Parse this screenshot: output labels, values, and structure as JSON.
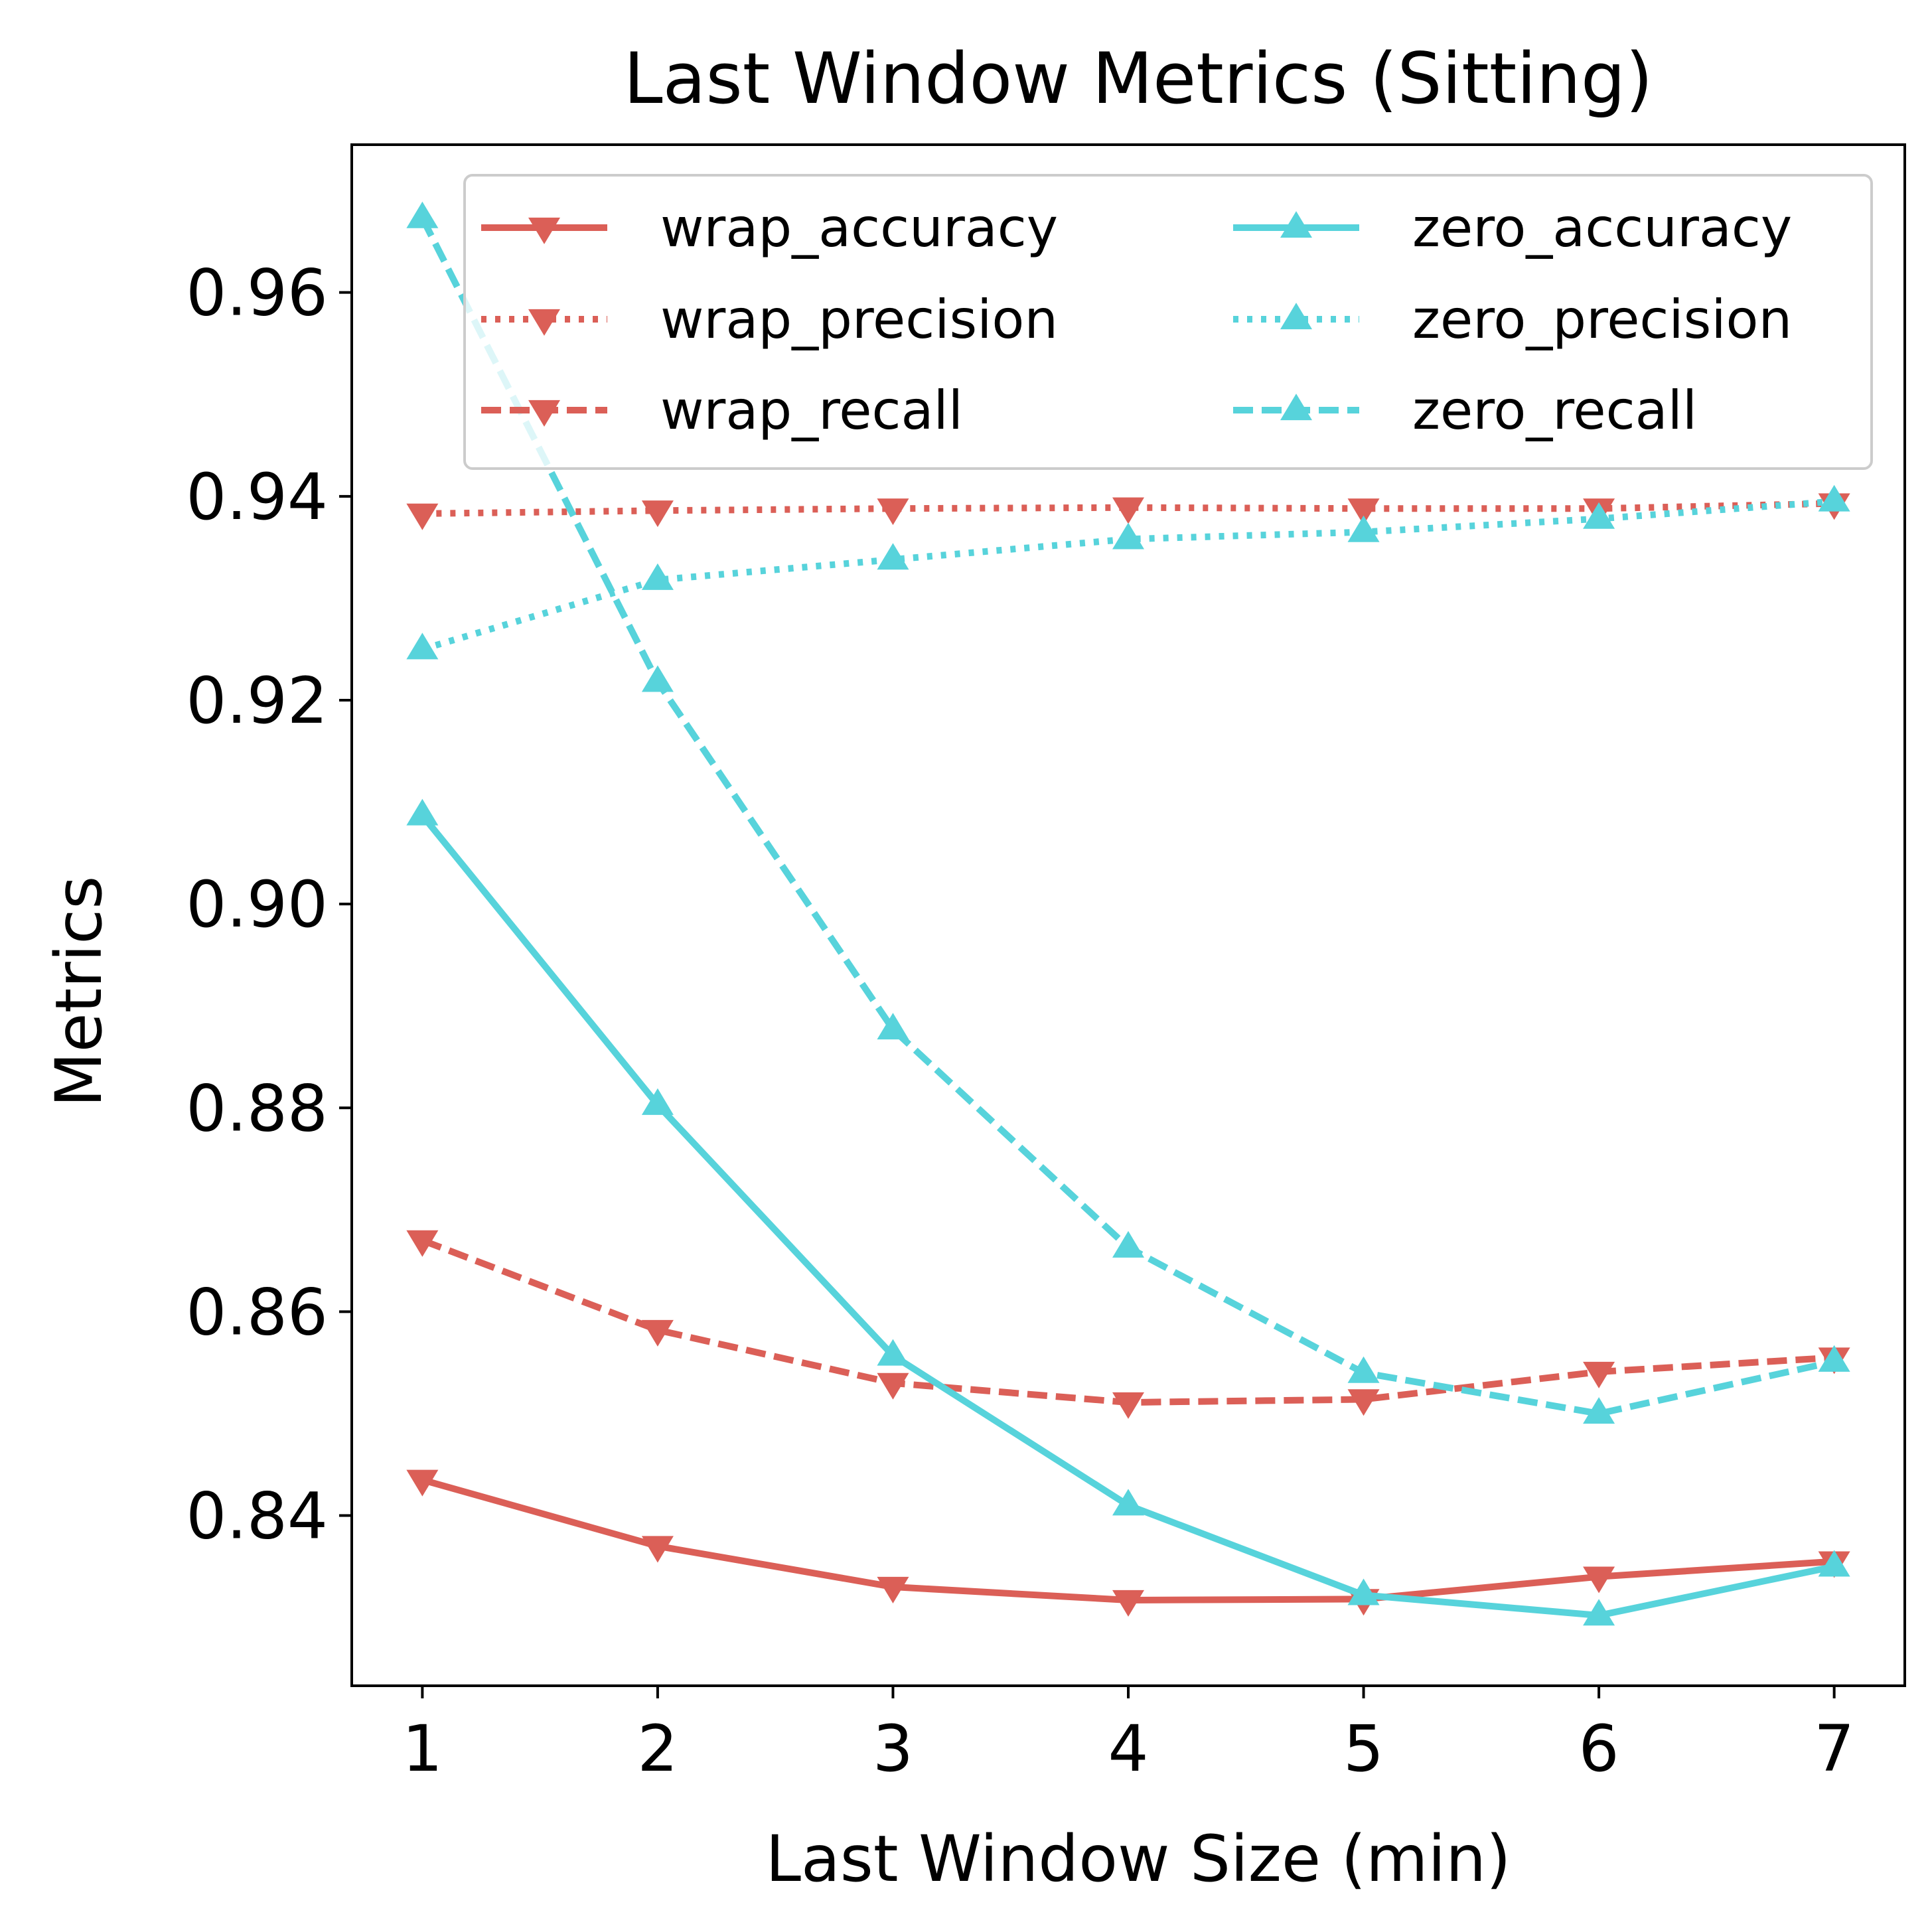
{
  "chart_data": {
    "type": "line",
    "title": "Last Window Metrics (Sitting)",
    "xlabel": "Last Window Size (min)",
    "ylabel": "Metrics",
    "x": [
      1,
      2,
      3,
      4,
      5,
      6,
      7
    ],
    "xticks": [
      "1",
      "2",
      "3",
      "4",
      "5",
      "6",
      "7"
    ],
    "yticks": [
      "0.84",
      "0.86",
      "0.88",
      "0.90",
      "0.92",
      "0.94",
      "0.96"
    ],
    "xlim": [
      0.7,
      7.3
    ],
    "ylim": [
      0.8233,
      0.9745
    ],
    "grid": false,
    "legend": "top-right, 2 columns",
    "series": [
      {
        "name": "wrap_accuracy",
        "values": [
          0.8435,
          0.837,
          0.833,
          0.8317,
          0.8318,
          0.834,
          0.8355
        ],
        "color": "#db5f57",
        "style": "solid",
        "marker": "triangle-down"
      },
      {
        "name": "wrap_precision",
        "values": [
          0.9383,
          0.9386,
          0.9388,
          0.9389,
          0.9388,
          0.9388,
          0.9393
        ],
        "color": "#db5f57",
        "style": "dotted",
        "marker": "triangle-down"
      },
      {
        "name": "wrap_recall",
        "values": [
          0.867,
          0.8582,
          0.853,
          0.8511,
          0.8514,
          0.8541,
          0.8555
        ],
        "color": "#db5f57",
        "style": "dashed",
        "marker": "triangle-down"
      },
      {
        "name": "zero_accuracy",
        "values": [
          0.9087,
          0.8803,
          0.8557,
          0.841,
          0.8322,
          0.8302,
          0.835
        ],
        "color": "#57d3db",
        "style": "solid",
        "marker": "triangle-up"
      },
      {
        "name": "zero_precision",
        "values": [
          0.925,
          0.9318,
          0.9338,
          0.9358,
          0.9365,
          0.9378,
          0.9395
        ],
        "color": "#57d3db",
        "style": "dotted",
        "marker": "triangle-up"
      },
      {
        "name": "zero_recall",
        "values": [
          0.9673,
          0.9218,
          0.8877,
          0.8663,
          0.854,
          0.85,
          0.8551
        ],
        "color": "#57d3db",
        "style": "dashed",
        "marker": "triangle-up"
      }
    ]
  }
}
